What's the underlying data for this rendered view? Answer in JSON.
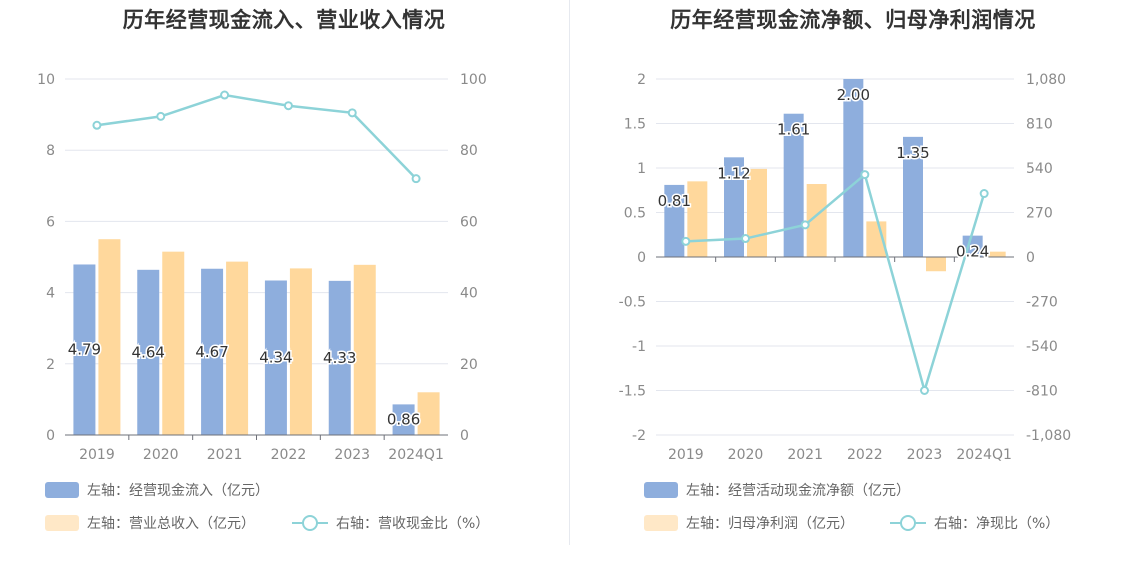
{
  "charts": {
    "left": {
      "title": "历年经营现金流入、营业收入情况",
      "legend": {
        "bar1": "左轴：经营现金流入（亿元）",
        "bar2": "左轴：营业总收入（亿元）",
        "line": "右轴：营收现金比（%）"
      }
    },
    "right": {
      "title": "历年经营现金流净额、归母净利润情况",
      "legend": {
        "bar1": "左轴：经营活动现金流净额（亿元）",
        "bar2": "左轴：归母净利润（亿元）",
        "line": "右轴：净现比（%）"
      }
    }
  },
  "colors": {
    "bar1": "#8eaedd",
    "bar2": "#ffd89c",
    "line": "#8dd3d8",
    "grid": "#e3e6ee",
    "tick": "#8a8a8a"
  },
  "chart_data": [
    {
      "type": "bar",
      "title": "历年经营现金流入、营业收入情况",
      "categories": [
        "2019",
        "2020",
        "2021",
        "2022",
        "2023",
        "2024Q1"
      ],
      "y_left": {
        "min": 0,
        "max": 10,
        "ticks": [
          "0",
          "2",
          "4",
          "6",
          "8",
          "10"
        ]
      },
      "y_right": {
        "min": 0,
        "max": 100,
        "ticks": [
          "0",
          "20",
          "40",
          "60",
          "80",
          "100"
        ]
      },
      "series": [
        {
          "name": "经营现金流入（亿元）",
          "axis": "left",
          "type": "bar",
          "values": [
            4.79,
            4.64,
            4.67,
            4.34,
            4.33,
            0.86
          ],
          "labels": [
            "4.79",
            "4.64",
            "4.67",
            "4.34",
            "4.33",
            "0.86"
          ]
        },
        {
          "name": "营业总收入（亿元）",
          "axis": "left",
          "type": "bar",
          "values": [
            5.5,
            5.15,
            4.87,
            4.68,
            4.78,
            1.2
          ]
        },
        {
          "name": "营收现金比（%）",
          "axis": "right",
          "type": "line",
          "values": [
            87,
            89.5,
            95.5,
            92.5,
            90.5,
            72
          ]
        }
      ]
    },
    {
      "type": "bar",
      "title": "历年经营现金流净额、归母净利润情况",
      "categories": [
        "2019",
        "2020",
        "2021",
        "2022",
        "2023",
        "2024Q1"
      ],
      "y_left": {
        "min": -2,
        "max": 2,
        "ticks": [
          "-2",
          "-1.5",
          "-1",
          "-0.5",
          "0",
          "0.5",
          "1",
          "1.5",
          "2"
        ]
      },
      "y_right": {
        "min": -1080,
        "max": 1080,
        "ticks": [
          "-1,080",
          "-810",
          "-540",
          "-270",
          "0",
          "270",
          "540",
          "810",
          "1,080"
        ]
      },
      "series": [
        {
          "name": "经营活动现金流净额（亿元）",
          "axis": "left",
          "type": "bar",
          "values": [
            0.81,
            1.12,
            1.61,
            2.0,
            1.35,
            0.24
          ],
          "labels": [
            "0.81",
            "1.12",
            "1.61",
            "2.00",
            "1.35",
            "0.24"
          ]
        },
        {
          "name": "归母净利润（亿元）",
          "axis": "left",
          "type": "bar",
          "values": [
            0.85,
            0.99,
            0.82,
            0.4,
            -0.16,
            0.06
          ]
        },
        {
          "name": "净现比（%）",
          "axis": "right",
          "type": "line",
          "values": [
            95,
            112,
            195,
            500,
            -810,
            385
          ]
        }
      ]
    }
  ]
}
